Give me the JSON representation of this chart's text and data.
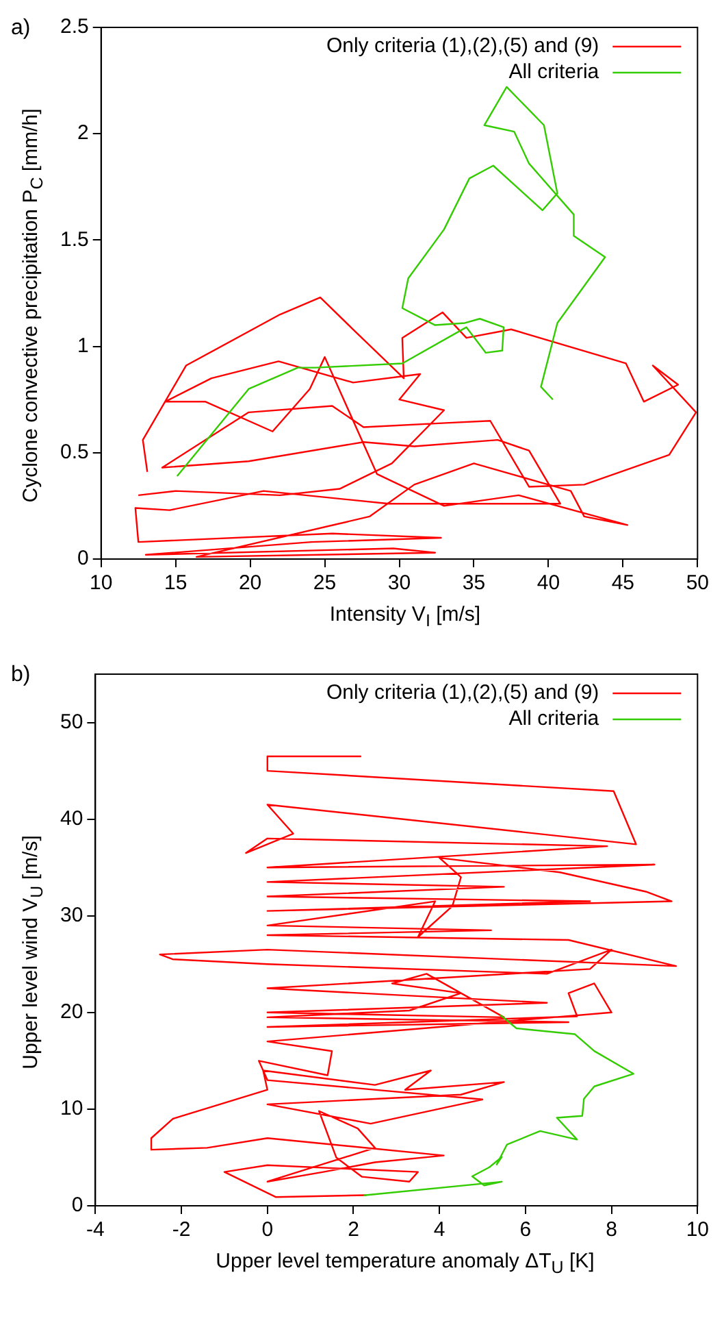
{
  "chart_data": [
    {
      "type": "line",
      "xlabel": "Intensity V$_{I}$ [m/s]",
      "ylabel": "Cyclone convective precipitation P$_{C}$ [mm/h]",
      "annotations": [
        "a)"
      ],
      "xlim": [
        10,
        50
      ],
      "ylim": [
        0,
        2.5
      ],
      "xticks": [
        10,
        15,
        20,
        25,
        30,
        35,
        40,
        45,
        50
      ],
      "yticks": [
        0,
        0.5,
        1,
        1.5,
        2,
        2.5
      ],
      "grid": false,
      "legend": "top right",
      "marker": "none",
      "line_style": "solid",
      "series": [
        {
          "name": "Only criteria (1),(2),(5) and (9)",
          "color": "#ff0000",
          "x": [
            13.1,
            12.8,
            15.7,
            22.0,
            24.7,
            26.9,
            30.3,
            30.2,
            32.9,
            34.5,
            37.5,
            45.2,
            46.4,
            48.7,
            47.0,
            49.9,
            48.1,
            42.4,
            38.7,
            36.1,
            33.1,
            27.6,
            25.5,
            19.9,
            14.1,
            19.9,
            27.6,
            31.0,
            36.6,
            38.7,
            40.8,
            29.3,
            20.9,
            14.6,
            12.3,
            12.5,
            25.5,
            32.8,
            24.1,
            13.0,
            29.6,
            32.4,
            16.4,
            28,
            31,
            35,
            41.5,
            42.4,
            45.3,
            38,
            33,
            28.5,
            25,
            24,
            21.5,
            17,
            14.3,
            17.4,
            21.9,
            26.9,
            31.4,
            30,
            33,
            29.5,
            26,
            22,
            15,
            12.5
          ],
          "values": [
            0.41,
            0.56,
            0.91,
            1.15,
            1.23,
            1.08,
            0.85,
            1.04,
            1.16,
            1.04,
            1.08,
            0.92,
            0.74,
            0.82,
            0.91,
            0.69,
            0.49,
            0.35,
            0.34,
            0.65,
            0.64,
            0.62,
            0.72,
            0.69,
            0.43,
            0.46,
            0.55,
            0.53,
            0.56,
            0.51,
            0.26,
            0.26,
            0.32,
            0.23,
            0.24,
            0.08,
            0.12,
            0.1,
            0.08,
            0.02,
            0.05,
            0.03,
            0.01,
            0.2,
            0.35,
            0.45,
            0.32,
            0.2,
            0.16,
            0.3,
            0.25,
            0.4,
            0.95,
            0.8,
            0.6,
            0.74,
            0.74,
            0.85,
            0.93,
            0.83,
            0.87,
            0.75,
            0.7,
            0.45,
            0.33,
            0.3,
            0.32,
            0.3
          ]
        },
        {
          "name": "All criteria",
          "color": "#33cc00",
          "x": [
            15.1,
            19.9,
            23.2,
            24.4,
            30.2,
            34.5,
            35.8,
            36.9,
            37.0,
            35.4,
            34.4,
            32.4,
            30.2,
            30.6,
            33.0,
            34.7,
            36.3,
            39.6,
            40.6,
            39.7,
            37.2,
            35.7,
            37.7,
            38.7,
            41.7,
            41.7,
            43.8,
            40.6,
            39.5,
            40.3
          ],
          "values": [
            0.39,
            0.8,
            0.9,
            0.9,
            0.92,
            1.09,
            0.97,
            0.98,
            1.09,
            1.13,
            1.11,
            1.1,
            1.18,
            1.32,
            1.55,
            1.79,
            1.85,
            1.64,
            1.72,
            2.04,
            2.22,
            2.04,
            2.01,
            1.86,
            1.62,
            1.52,
            1.42,
            1.11,
            0.81,
            0.75
          ]
        }
      ]
    },
    {
      "type": "line",
      "xlabel": "Upper level temperature anomaly ΔT$_{U}$ [K]",
      "ylabel": "Upper level wind V$_{U}$ [m/s]",
      "annotations": [
        "b)"
      ],
      "xlim": [
        -4,
        10
      ],
      "ylim": [
        0,
        55
      ],
      "xticks": [
        -4,
        -2,
        0,
        2,
        4,
        6,
        8,
        10
      ],
      "yticks": [
        0,
        10,
        20,
        30,
        40,
        50
      ],
      "grid": false,
      "legend": "top right",
      "marker": "none",
      "line_style": "solid",
      "series": [
        {
          "name": "Only criteria (1),(2),(5) and (9)",
          "color": "#ff0000",
          "x": [
            2.18,
            0,
            0,
            8.05,
            8.57,
            0,
            0.6,
            -0.5,
            0,
            7.9,
            0,
            9,
            0,
            5.5,
            0,
            7.5,
            0,
            9.4,
            8.8,
            6.8,
            4,
            4.5,
            4.3,
            3.5,
            3.9,
            0,
            5.2,
            0,
            7,
            9.5,
            0,
            -2.5,
            -2.2,
            0,
            6.5,
            8,
            7.5,
            0,
            6.5,
            0,
            5.5,
            3.7,
            2.9,
            4.5,
            3.3,
            0,
            7,
            0,
            7.2,
            7,
            7.6,
            8,
            0,
            1.5,
            1.4,
            -0.2,
            0,
            5,
            2.4,
            0,
            4.5,
            5.5,
            3.2,
            3.8,
            2.5,
            -0.1,
            0,
            -2.2,
            -2.7,
            -2.7,
            -1.4,
            0,
            4.1,
            2.5,
            1.3,
            0,
            2.5,
            2.1,
            1.2,
            1.6,
            2.2,
            3.3,
            3.5,
            0,
            -1,
            0.2,
            2.3
          ],
          "values": [
            46.5,
            46.5,
            45.0,
            42.9,
            37.4,
            41.5,
            38.5,
            36.5,
            38,
            37.2,
            35,
            35.3,
            33.5,
            33,
            32,
            31.5,
            30.5,
            31.5,
            32.5,
            34.5,
            36,
            34,
            31,
            27.8,
            31.5,
            29,
            28.5,
            28,
            27.5,
            24.8,
            26.5,
            26,
            25.5,
            25,
            24,
            26.5,
            24.5,
            22.5,
            21,
            20,
            19.5,
            24,
            23,
            22,
            20.2,
            19.5,
            19,
            18.5,
            19.6,
            22,
            23,
            20,
            17,
            16,
            13.5,
            15,
            13,
            11,
            8.5,
            10.5,
            11.5,
            12.8,
            12,
            14,
            12.5,
            14,
            12,
            9,
            7,
            5.8,
            6,
            7,
            5.2,
            4.5,
            3.5,
            2.5,
            6,
            8,
            9.8,
            5,
            3,
            2.5,
            3.5,
            4.2,
            3.5,
            0.9,
            1.1
          ]
        },
        {
          "name": "All criteria",
          "color": "#33cc00",
          "x": [
            2.24,
            5.45,
            5.04,
            4.76,
            5.16,
            5.45,
            5.33,
            5.57,
            6.34,
            7.2,
            6.73,
            7.32,
            7.36,
            7.6,
            8.51,
            7.6,
            7.15,
            5.79,
            5.41
          ],
          "values": [
            1.08,
            2.49,
            2.11,
            3.05,
            3.99,
            5.06,
            4.27,
            6.34,
            7.73,
            6.85,
            9.11,
            9.3,
            11.08,
            12.35,
            13.66,
            16.01,
            17.75,
            18.36,
            19.77
          ]
        }
      ]
    }
  ]
}
